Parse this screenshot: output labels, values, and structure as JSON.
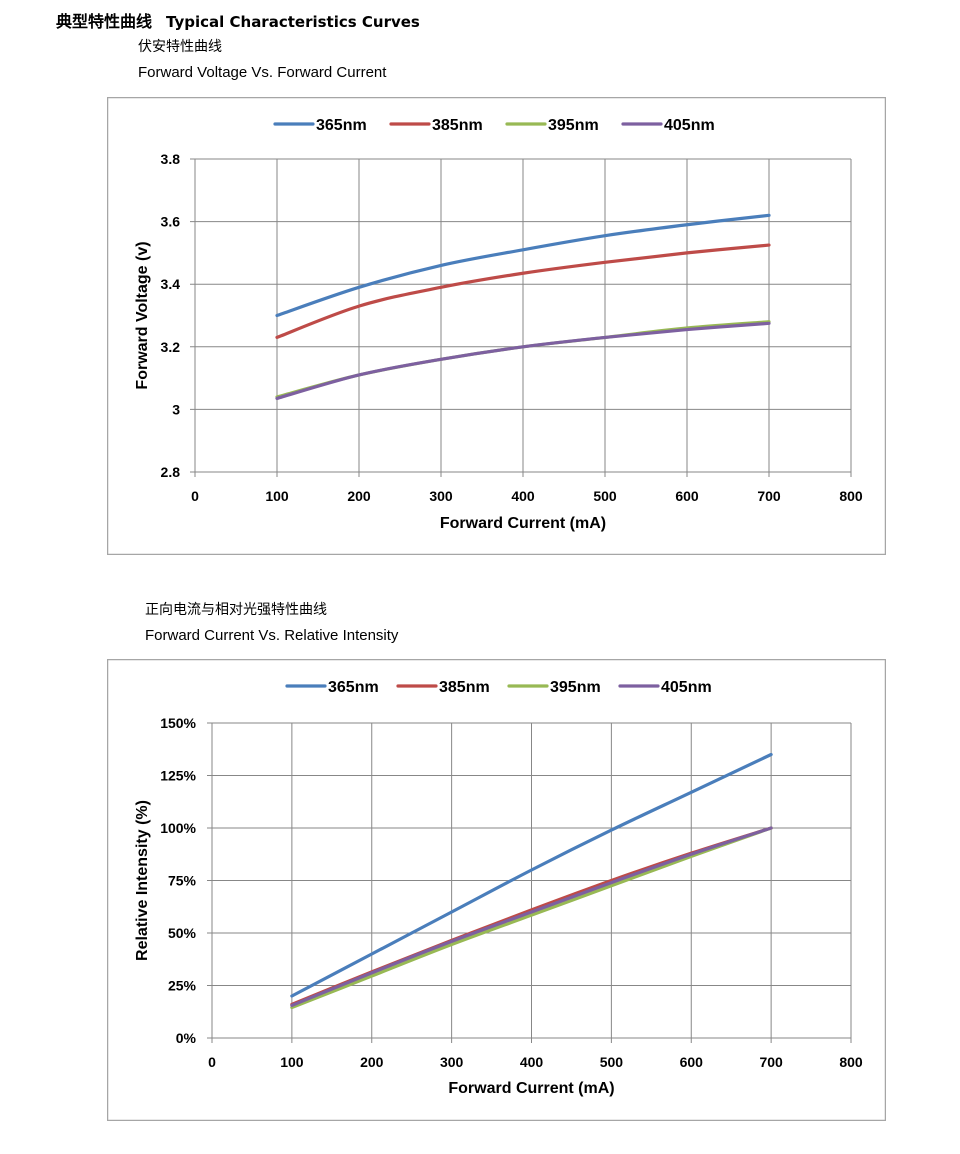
{
  "header": {
    "title_cn": "典型特性曲线",
    "title_en": "Typical Characteristics Curves"
  },
  "charts_text": [
    {
      "subtitle_cn": "伏安特性曲线",
      "subtitle_en": "Forward Voltage Vs. Forward Current"
    },
    {
      "subtitle_cn": "正向电流与相对光强特性曲线",
      "subtitle_en": "Forward Current Vs. Relative Intensity"
    }
  ],
  "colors": {
    "365nm": "#4a7ebb",
    "385nm": "#be4b48",
    "395nm": "#98b954",
    "405nm": "#7d60a0",
    "grid": "#878787",
    "frame": "#a6a6a6"
  },
  "chart_data": [
    {
      "type": "line",
      "title": "Forward Voltage Vs. Forward Current",
      "xlabel": "Forward Current (mA)",
      "ylabel": "Forward Voltage (v)",
      "xlim": [
        0,
        800
      ],
      "ylim": [
        2.8,
        3.8
      ],
      "xticks": [
        0,
        100,
        200,
        300,
        400,
        500,
        600,
        700,
        800
      ],
      "xtick_labels": [
        "0",
        "100",
        "200",
        "300",
        "400",
        "500",
        "600",
        "700",
        "800"
      ],
      "yticks": [
        2.8,
        3.0,
        3.2,
        3.4,
        3.6,
        3.8
      ],
      "ytick_labels": [
        "2.8",
        "3",
        "3.2",
        "3.4",
        "3.6",
        "3.8"
      ],
      "grid": true,
      "legend_position": "top",
      "x": [
        100,
        200,
        300,
        400,
        500,
        600,
        700
      ],
      "series": [
        {
          "name": "365nm",
          "values": [
            3.3,
            3.39,
            3.46,
            3.51,
            3.555,
            3.59,
            3.62
          ]
        },
        {
          "name": "385nm",
          "values": [
            3.23,
            3.33,
            3.39,
            3.435,
            3.47,
            3.5,
            3.525
          ]
        },
        {
          "name": "395nm",
          "values": [
            3.04,
            3.11,
            3.16,
            3.2,
            3.23,
            3.26,
            3.28
          ]
        },
        {
          "name": "405nm",
          "values": [
            3.035,
            3.11,
            3.16,
            3.2,
            3.23,
            3.255,
            3.275
          ]
        }
      ]
    },
    {
      "type": "line",
      "title": "Forward Current Vs. Relative Intensity",
      "xlabel": "Forward Current (mA)",
      "ylabel": "Relative Intensity (%)",
      "xlim": [
        0,
        800
      ],
      "ylim": [
        0,
        150
      ],
      "xticks": [
        0,
        100,
        200,
        300,
        400,
        500,
        600,
        700,
        800
      ],
      "xtick_labels": [
        "0",
        "100",
        "200",
        "300",
        "400",
        "500",
        "600",
        "700",
        "800"
      ],
      "yticks": [
        0,
        25,
        50,
        75,
        100,
        125,
        150
      ],
      "ytick_labels": [
        "0%",
        "25%",
        "50%",
        "75%",
        "100%",
        "125%",
        "150%"
      ],
      "grid": true,
      "legend_position": "top",
      "x": [
        100,
        200,
        300,
        400,
        500,
        600,
        700
      ],
      "series": [
        {
          "name": "365nm",
          "values": [
            20,
            40,
            60,
            80,
            99,
            117,
            135
          ]
        },
        {
          "name": "385nm",
          "values": [
            16,
            31.5,
            46.5,
            61,
            75,
            88,
            100
          ]
        },
        {
          "name": "395nm",
          "values": [
            14.5,
            29.5,
            44.5,
            58.5,
            72.5,
            86.5,
            100
          ]
        },
        {
          "name": "405nm",
          "values": [
            15.5,
            31,
            46,
            60,
            74,
            87.5,
            100
          ]
        }
      ]
    }
  ]
}
